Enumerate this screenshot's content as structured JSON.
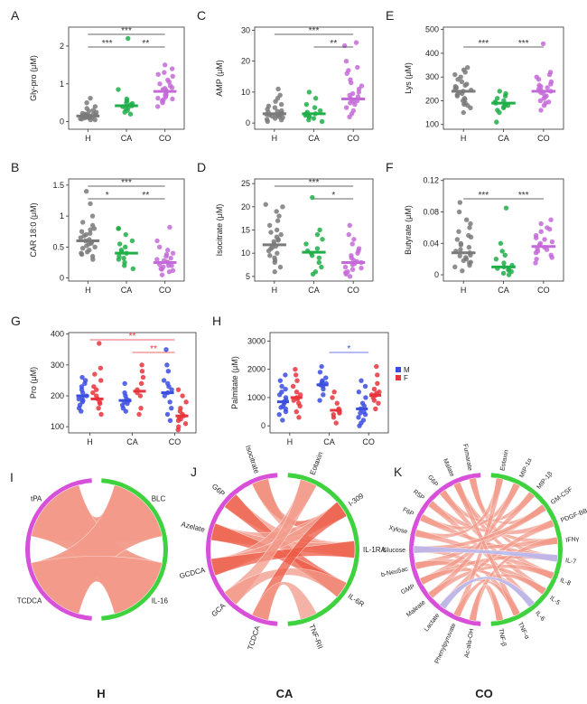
{
  "figure": {
    "chord_titles": [
      "H",
      "CA",
      "CO"
    ]
  },
  "colors": {
    "H": "#7a7a7a",
    "CA": "#1fae48",
    "CO": "#c46ad8",
    "M": "#3b4de0",
    "F": "#e8343c",
    "sig_red": "#e8343c",
    "sig_blue": "#3b4de0",
    "chord_left": "#d84fd9",
    "chord_right": "#3ed33e",
    "ribbon": "#f29a8a",
    "ribbon_dark": "#ec5a44",
    "ribbon_blue": "#b9b9f0"
  },
  "chart_data": [
    {
      "panel": "A",
      "type": "scatter",
      "ylabel": "Gly-pro (μM)",
      "categories": [
        "H",
        "CA",
        "CO"
      ],
      "yticks": [
        0,
        1,
        2
      ],
      "ylim": [
        -0.2,
        2.5
      ],
      "medians": [
        0.15,
        0.42,
        0.8
      ],
      "groups": [
        [
          0.05,
          0.08,
          0.1,
          0.12,
          0.13,
          0.14,
          0.15,
          0.16,
          0.17,
          0.18,
          0.2,
          0.22,
          0.25,
          0.3,
          0.35,
          0.4,
          0.5,
          0.62,
          0.1,
          0.12,
          0.28,
          0.05,
          0.18,
          0.07,
          0.2,
          0.15
        ],
        [
          0.2,
          0.3,
          0.35,
          0.4,
          0.42,
          0.45,
          0.5,
          0.55,
          0.6,
          0.85,
          2.2,
          0.38,
          0.25,
          0.48
        ],
        [
          0.4,
          0.5,
          0.55,
          0.6,
          0.65,
          0.7,
          0.75,
          0.8,
          0.82,
          0.85,
          0.9,
          0.95,
          1.0,
          1.05,
          1.1,
          1.2,
          1.3,
          1.4,
          1.5,
          0.7,
          0.88,
          1.25,
          0.62,
          0.58
        ]
      ],
      "sig": [
        {
          "from": 0,
          "to": 2,
          "label": "***",
          "level": 2
        },
        {
          "from": 0,
          "to": 1,
          "label": "***",
          "level": 1
        },
        {
          "from": 1,
          "to": 2,
          "label": "**",
          "level": 1
        }
      ]
    },
    {
      "panel": "C",
      "type": "scatter",
      "ylabel": "AMP (μM)",
      "categories": [
        "H",
        "CA",
        "CO"
      ],
      "yticks": [
        0,
        10,
        20,
        30
      ],
      "ylim": [
        -2,
        31
      ],
      "medians": [
        3,
        3,
        7.8
      ],
      "groups": [
        [
          0.5,
          1,
          1.5,
          2,
          2.2,
          2.5,
          2.8,
          3,
          3.2,
          3.5,
          4,
          4.5,
          5,
          6,
          7,
          8,
          9,
          11,
          1.8,
          2.6,
          3.8,
          5.5,
          1.2,
          2.4
        ],
        [
          0.5,
          1,
          2,
          2.5,
          3,
          3,
          4,
          5,
          6,
          8,
          10,
          1.5,
          3.5,
          2.2
        ],
        [
          2,
          3,
          4,
          5,
          6,
          6.5,
          7,
          7.5,
          8,
          8.5,
          9,
          10,
          11,
          12,
          13,
          14,
          16,
          17,
          18,
          20,
          25,
          26,
          7.2,
          9.5
        ]
      ],
      "sig": [
        {
          "from": 0,
          "to": 2,
          "label": "***",
          "level": 2
        },
        {
          "from": 1,
          "to": 2,
          "label": "**",
          "level": 1
        }
      ]
    },
    {
      "panel": "E",
      "type": "scatter",
      "ylabel": "Lys (μM)",
      "categories": [
        "H",
        "CA",
        "CO"
      ],
      "yticks": [
        100,
        200,
        300,
        400,
        500
      ],
      "ylim": [
        80,
        510
      ],
      "medians": [
        240,
        190,
        240
      ],
      "groups": [
        [
          150,
          170,
          180,
          190,
          200,
          210,
          220,
          230,
          235,
          240,
          245,
          250,
          255,
          260,
          270,
          280,
          290,
          300,
          310,
          320,
          330,
          340,
          225,
          265,
          205,
          185
        ],
        [
          110,
          150,
          160,
          170,
          180,
          185,
          190,
          195,
          200,
          210,
          220,
          230,
          240,
          175
        ],
        [
          160,
          180,
          190,
          200,
          210,
          220,
          230,
          235,
          240,
          245,
          250,
          260,
          270,
          280,
          290,
          300,
          310,
          320,
          440,
          215,
          255,
          265,
          195
        ]
      ],
      "sig": [
        {
          "from": 0,
          "to": 1,
          "label": "***",
          "level": 1
        },
        {
          "from": 1,
          "to": 2,
          "label": "***",
          "level": 1
        }
      ]
    },
    {
      "panel": "B",
      "type": "scatter",
      "ylabel": "CAR 18:0 (μM)",
      "categories": [
        "H",
        "CA",
        "CO"
      ],
      "yticks": [
        0.0,
        0.5,
        1.0,
        1.5
      ],
      "ylim": [
        -0.05,
        1.6
      ],
      "medians": [
        0.6,
        0.4,
        0.25
      ],
      "groups": [
        [
          0.3,
          0.35,
          0.4,
          0.42,
          0.45,
          0.5,
          0.52,
          0.55,
          0.58,
          0.6,
          0.62,
          0.65,
          0.7,
          0.72,
          0.75,
          0.8,
          0.85,
          0.9,
          1.0,
          1.2,
          1.4,
          0.48,
          0.68,
          0.56,
          0.38,
          0.78
        ],
        [
          0.15,
          0.2,
          0.25,
          0.3,
          0.35,
          0.4,
          0.42,
          0.45,
          0.5,
          0.55,
          0.6,
          0.7,
          0.8,
          0.8,
          0.32
        ],
        [
          0.05,
          0.1,
          0.12,
          0.15,
          0.18,
          0.2,
          0.22,
          0.25,
          0.28,
          0.3,
          0.32,
          0.35,
          0.4,
          0.45,
          0.5,
          0.6,
          0.82,
          0.2,
          0.26,
          0.14,
          0.38
        ]
      ],
      "sig": [
        {
          "from": 0,
          "to": 2,
          "label": "***",
          "level": 2
        },
        {
          "from": 0,
          "to": 1,
          "label": "*",
          "level": 1
        },
        {
          "from": 1,
          "to": 2,
          "label": "**",
          "level": 1
        }
      ]
    },
    {
      "panel": "D",
      "type": "scatter",
      "ylabel": "Isocitrate (μM)",
      "categories": [
        "H",
        "CA",
        "CO"
      ],
      "yticks": [
        5,
        10,
        15,
        20,
        25
      ],
      "ylim": [
        4,
        26
      ],
      "medians": [
        11.8,
        10.2,
        8
      ],
      "groups": [
        [
          6,
          7,
          8,
          9,
          9.5,
          10,
          10.5,
          11,
          11.5,
          12,
          12.5,
          13,
          13.5,
          14,
          15,
          16,
          17,
          18,
          19,
          20,
          20.5,
          11.2,
          12.8,
          8.5,
          14.5
        ],
        [
          5.5,
          6,
          7,
          8,
          9,
          10,
          10.5,
          11,
          12,
          13,
          14,
          15,
          22,
          9.5
        ],
        [
          5,
          5.5,
          6,
          6.5,
          7,
          7.5,
          8,
          8.5,
          9,
          9.5,
          10,
          11,
          12,
          13,
          14,
          16,
          6.8,
          7.8,
          8.2,
          10.5,
          5.8
        ]
      ],
      "sig": [
        {
          "from": 0,
          "to": 2,
          "label": "***",
          "level": 2
        },
        {
          "from": 1,
          "to": 2,
          "label": "*",
          "level": 1
        }
      ]
    },
    {
      "panel": "F",
      "type": "scatter",
      "ylabel": "Butyrate (μM)",
      "categories": [
        "H",
        "CA",
        "CO"
      ],
      "yticks": [
        0.0,
        0.04,
        0.08,
        0.12
      ],
      "ylim": [
        -0.008,
        0.122
      ],
      "medians": [
        0.028,
        0.01,
        0.036
      ],
      "groups": [
        [
          0.005,
          0.01,
          0.012,
          0.015,
          0.018,
          0.02,
          0.022,
          0.025,
          0.028,
          0.03,
          0.032,
          0.035,
          0.04,
          0.045,
          0.05,
          0.055,
          0.06,
          0.065,
          0.07,
          0.08,
          0.092,
          0.024,
          0.038,
          0.016,
          0.048
        ],
        [
          0.0,
          0.002,
          0.004,
          0.006,
          0.008,
          0.01,
          0.012,
          0.015,
          0.02,
          0.025,
          0.03,
          0.04,
          0.085,
          0.007
        ],
        [
          0.015,
          0.02,
          0.025,
          0.028,
          0.03,
          0.032,
          0.035,
          0.038,
          0.04,
          0.042,
          0.045,
          0.05,
          0.055,
          0.06,
          0.065,
          0.07,
          0.033,
          0.047,
          0.022,
          0.058
        ]
      ],
      "sig": [
        {
          "from": 0,
          "to": 1,
          "label": "***",
          "level": 1
        },
        {
          "from": 1,
          "to": 2,
          "label": "***",
          "level": 1
        }
      ]
    },
    {
      "panel": "G",
      "type": "scatter",
      "ylabel": "Pro (μM)",
      "categories": [
        "H",
        "CA",
        "CO"
      ],
      "yticks": [
        100,
        200,
        300,
        400
      ],
      "ylim": [
        80,
        405
      ],
      "split": [
        "M",
        "F"
      ],
      "medians_split": [
        [
          200,
          190
        ],
        [
          185,
          215
        ],
        [
          210,
          135
        ]
      ],
      "groups_split": [
        [
          [
            150,
            160,
            170,
            180,
            190,
            195,
            200,
            210,
            220,
            230,
            240,
            250,
            260,
            185
          ],
          [
            140,
            160,
            180,
            190,
            200,
            210,
            220,
            230,
            250,
            270,
            290,
            370,
            175
          ]
        ],
        [
          [
            150,
            160,
            170,
            180,
            185,
            190,
            200,
            210,
            240,
            175
          ],
          [
            140,
            160,
            200,
            210,
            220,
            240,
            260,
            280,
            300
          ]
        ],
        [
          [
            120,
            140,
            160,
            180,
            200,
            210,
            220,
            240,
            250,
            280,
            300,
            350,
            230
          ],
          [
            90,
            100,
            110,
            120,
            130,
            135,
            140,
            150,
            160,
            180,
            200,
            220,
            125
          ]
        ]
      ],
      "sig": [
        {
          "from": 0,
          "to": 2,
          "label": "**",
          "level": 2,
          "color": "red"
        },
        {
          "from": 1,
          "to": 2,
          "label": "**",
          "level": 1,
          "color": "red"
        }
      ]
    },
    {
      "panel": "H",
      "type": "scatter",
      "ylabel": "Palmitate (μM)",
      "categories": [
        "H",
        "CA",
        "CO"
      ],
      "yticks": [
        0,
        1000,
        2000,
        3000
      ],
      "ylim": [
        -250,
        3300
      ],
      "split": [
        "M",
        "F"
      ],
      "legend": [
        "M",
        "F"
      ],
      "medians_split": [
        [
          850,
          1000
        ],
        [
          1450,
          550
        ],
        [
          600,
          1080
        ]
      ],
      "groups_split": [
        [
          [
            200,
            400,
            500,
            600,
            700,
            800,
            850,
            900,
            1000,
            1100,
            1200,
            1300,
            1400,
            1600,
            1800,
            650
          ],
          [
            300,
            500,
            700,
            800,
            900,
            1000,
            1100,
            1200,
            1400,
            1600,
            1800,
            2000,
            950
          ]
        ],
        [
          [
            900,
            1100,
            1300,
            1400,
            1450,
            1500,
            1600,
            1700,
            1900,
            2100,
            1550
          ],
          [
            100,
            300,
            400,
            500,
            550,
            600,
            800,
            1000,
            1200,
            450
          ]
        ],
        [
          [
            0,
            100,
            200,
            300,
            400,
            500,
            600,
            700,
            800,
            1000,
            1200,
            1400,
            1600,
            450
          ],
          [
            600,
            800,
            900,
            1000,
            1080,
            1100,
            1200,
            1300,
            1500,
            1800,
            2100,
            1150
          ]
        ]
      ],
      "sig": [
        {
          "from": 1,
          "to": 2,
          "label": "*",
          "level": 1,
          "color": "blue"
        }
      ]
    },
    {
      "panel": "I",
      "type": "chord",
      "group": "H",
      "left": [
        "tPA",
        "TCDCA"
      ],
      "right": [
        "BLC",
        "IL-16"
      ],
      "links": [
        [
          0,
          0
        ],
        [
          0,
          1
        ],
        [
          1,
          0
        ],
        [
          1,
          1
        ]
      ]
    },
    {
      "panel": "J",
      "type": "chord",
      "group": "CA",
      "left": [
        "Isocitrate",
        "G6P",
        "Azelate",
        "GCDCA",
        "GCA",
        "TCDCA"
      ],
      "right": [
        "Eotaxin",
        "I-309",
        "IL-1RA",
        "IL-6R",
        "TNF-RII"
      ],
      "links": [
        [
          0,
          1
        ],
        [
          0,
          2
        ],
        [
          1,
          2
        ],
        [
          1,
          3
        ],
        [
          2,
          1
        ],
        [
          2,
          2
        ],
        [
          2,
          3
        ],
        [
          3,
          0
        ],
        [
          3,
          1
        ],
        [
          3,
          2
        ],
        [
          4,
          0
        ],
        [
          4,
          3
        ],
        [
          5,
          1
        ],
        [
          5,
          4
        ]
      ]
    },
    {
      "panel": "K",
      "type": "chord",
      "group": "CO",
      "left": [
        "Fumarate",
        "Malate",
        "G6P",
        "R5P",
        "F6P",
        "Xylose",
        "Glucose",
        "b-Neu5ac",
        "GMP",
        "Maleate",
        "Lactate",
        "Phenylpyruvate",
        "Ac-ala-OH"
      ],
      "right": [
        "Eotaxin",
        "MIP-1α",
        "MIP-1β",
        "GM-CSF",
        "PDGF-BB",
        "IFNγ",
        "IL-7",
        "IL-8",
        "IL-5",
        "IL-6",
        "TNF-α",
        "TNF-β"
      ],
      "links": [
        [
          0,
          3
        ],
        [
          0,
          6
        ],
        [
          1,
          5
        ],
        [
          1,
          7
        ],
        [
          2,
          2
        ],
        [
          2,
          8
        ],
        [
          3,
          4
        ],
        [
          3,
          9
        ],
        [
          4,
          1
        ],
        [
          4,
          6
        ],
        [
          5,
          0
        ],
        [
          5,
          7
        ],
        [
          6,
          5
        ],
        [
          6,
          10
        ],
        [
          7,
          3
        ],
        [
          7,
          8
        ],
        [
          7,
          11
        ],
        [
          8,
          2
        ],
        [
          8,
          6
        ],
        [
          8,
          9
        ],
        [
          9,
          1
        ],
        [
          9,
          7
        ],
        [
          10,
          4
        ],
        [
          10,
          10
        ],
        [
          11,
          0
        ],
        [
          11,
          8
        ],
        [
          12,
          5
        ],
        [
          12,
          11
        ],
        [
          1,
          10
        ],
        [
          6,
          3
        ]
      ],
      "blue_links": [
        [
          6,
          6
        ],
        [
          10,
          9
        ]
      ]
    }
  ]
}
